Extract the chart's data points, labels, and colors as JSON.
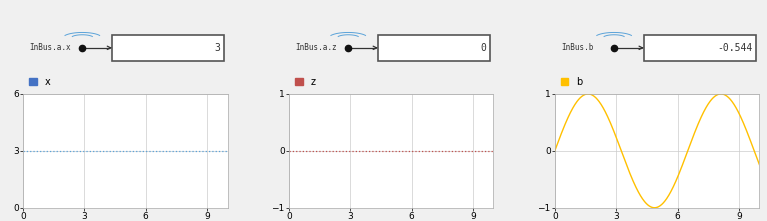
{
  "background_color": "#f0f0f0",
  "panels": [
    {
      "label": "InBus.a.x",
      "display_value": "3",
      "legend_label": "x",
      "legend_color": "#4472c4",
      "line_value": 3.0,
      "ylim": [
        0,
        6
      ],
      "yticks": [
        0,
        3,
        6
      ],
      "xticks": [
        0,
        3,
        6,
        9
      ],
      "xlim": [
        0,
        10
      ],
      "line_style": "dotted",
      "line_color": "#5ba3d9"
    },
    {
      "label": "InBus.a.z",
      "display_value": "0",
      "legend_label": "z",
      "legend_color": "#c0504d",
      "line_value": 0.0,
      "ylim": [
        -1,
        1
      ],
      "yticks": [
        -1,
        0,
        1
      ],
      "xticks": [
        0,
        3,
        6,
        9
      ],
      "xlim": [
        0,
        10
      ],
      "line_style": "dotted",
      "line_color": "#c0504d"
    },
    {
      "label": "InBus.b",
      "display_value": "-0.544",
      "legend_label": "b",
      "legend_color": "#ffc000",
      "line_value": null,
      "ylim": [
        -1,
        1
      ],
      "yticks": [
        -1,
        0,
        1
      ],
      "xticks": [
        0,
        3,
        6,
        9
      ],
      "xlim": [
        0,
        10
      ],
      "line_style": "solid",
      "line_color": "#ffc000",
      "sine_freq": 0.95,
      "sine_phase": 0.0
    }
  ],
  "diagram_bg": "#ffffff",
  "diagram_border": "#555555",
  "diagram_text_color": "#333333",
  "arrow_color": "#333333",
  "signal_icon_color": "#5ba3d9",
  "plot_bg": "#ffffff"
}
